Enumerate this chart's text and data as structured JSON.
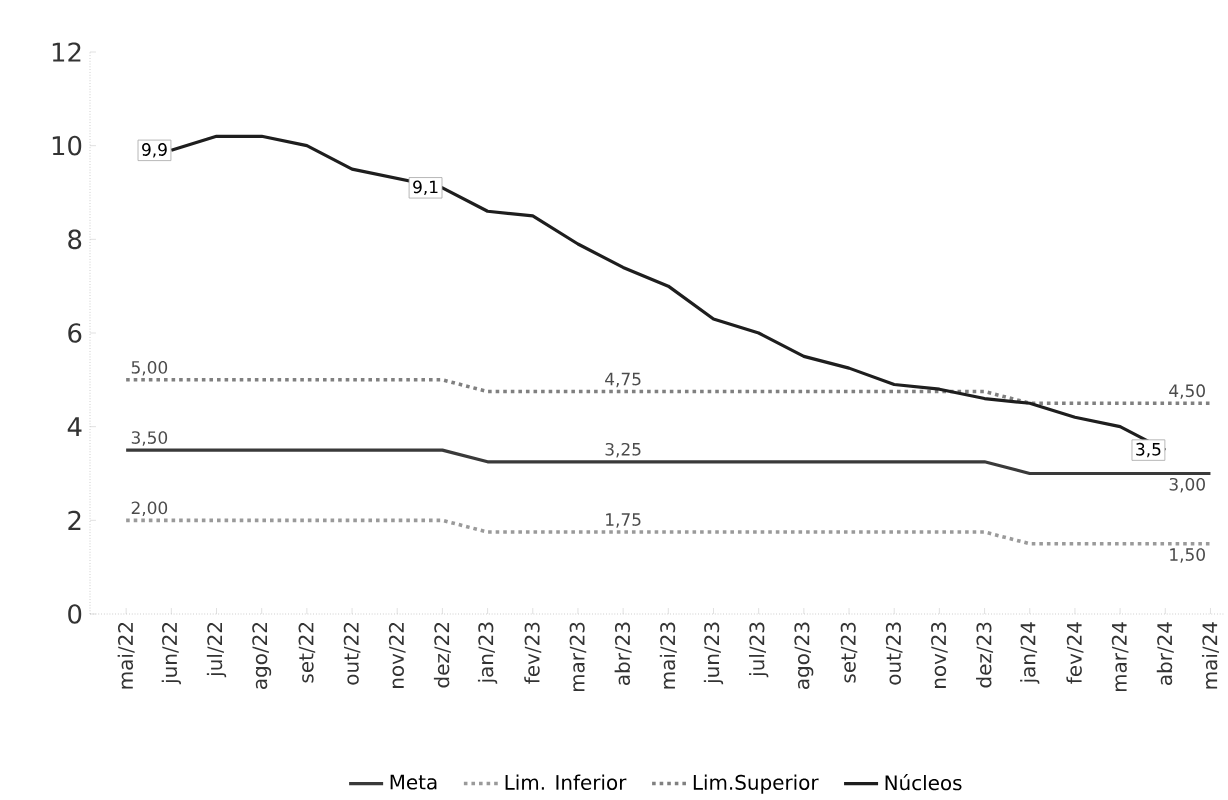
{
  "chart_data": {
    "type": "line",
    "categories": [
      "mai/22",
      "jun/22",
      "jul/22",
      "ago/22",
      "set/22",
      "out/22",
      "nov/22",
      "dez/22",
      "jan/23",
      "fev/23",
      "mar/23",
      "abr/23",
      "mai/23",
      "jun/23",
      "jul/23",
      "ago/23",
      "set/23",
      "out/23",
      "nov/23",
      "dez/23",
      "jan/24",
      "fev/24",
      "mar/24",
      "abr/24",
      "mai/24"
    ],
    "series": [
      {
        "name": "Meta",
        "color": "#3a3a3a",
        "line_style": "solid",
        "values": [
          3.5,
          3.5,
          3.5,
          3.5,
          3.5,
          3.5,
          3.5,
          3.5,
          3.25,
          3.25,
          3.25,
          3.25,
          3.25,
          3.25,
          3.25,
          3.25,
          3.25,
          3.25,
          3.25,
          3.25,
          3.0,
          3.0,
          3.0,
          3.0,
          3.0
        ],
        "value_labels": [
          "3,50",
          null,
          null,
          null,
          null,
          null,
          null,
          null,
          null,
          null,
          null,
          "3,25",
          null,
          null,
          null,
          null,
          null,
          null,
          null,
          null,
          null,
          null,
          null,
          null,
          "3,00"
        ]
      },
      {
        "name": "Lim. Inferior",
        "color": "#9a9a9a",
        "line_style": "dotted",
        "values": [
          2.0,
          2.0,
          2.0,
          2.0,
          2.0,
          2.0,
          2.0,
          2.0,
          1.75,
          1.75,
          1.75,
          1.75,
          1.75,
          1.75,
          1.75,
          1.75,
          1.75,
          1.75,
          1.75,
          1.75,
          1.5,
          1.5,
          1.5,
          1.5,
          1.5
        ],
        "value_labels": [
          "2,00",
          null,
          null,
          null,
          null,
          null,
          null,
          null,
          null,
          null,
          null,
          "1,75",
          null,
          null,
          null,
          null,
          null,
          null,
          null,
          null,
          null,
          null,
          null,
          null,
          "1,50"
        ]
      },
      {
        "name": "Lim.Superior",
        "color": "#808080",
        "line_style": "dotted",
        "values": [
          5.0,
          5.0,
          5.0,
          5.0,
          5.0,
          5.0,
          5.0,
          5.0,
          4.75,
          4.75,
          4.75,
          4.75,
          4.75,
          4.75,
          4.75,
          4.75,
          4.75,
          4.75,
          4.75,
          4.75,
          4.5,
          4.5,
          4.5,
          4.5,
          4.5
        ],
        "value_labels": [
          "5,00",
          null,
          null,
          null,
          null,
          null,
          null,
          null,
          null,
          null,
          null,
          "4,75",
          null,
          null,
          null,
          null,
          null,
          null,
          null,
          null,
          null,
          null,
          null,
          null,
          "4,50"
        ]
      },
      {
        "name": "Núcleos",
        "color": "#1e1e1e",
        "line_style": "solid",
        "values": [
          null,
          9.9,
          10.2,
          10.2,
          10.0,
          9.5,
          9.3,
          9.1,
          8.6,
          8.5,
          7.9,
          7.4,
          7.0,
          6.3,
          6.0,
          5.5,
          5.25,
          4.9,
          4.8,
          4.6,
          4.5,
          4.2,
          4.0,
          3.5,
          null
        ],
        "value_labels": [
          null,
          "9,9",
          null,
          null,
          null,
          null,
          null,
          "9,1",
          null,
          null,
          null,
          null,
          null,
          null,
          null,
          null,
          null,
          null,
          null,
          null,
          null,
          null,
          null,
          "3,5",
          null
        ]
      }
    ],
    "ylim": [
      0,
      12
    ],
    "yticks": [
      0,
      2,
      4,
      6,
      8,
      10,
      12
    ],
    "grid": false,
    "legend": "bottom",
    "marker": "none"
  }
}
